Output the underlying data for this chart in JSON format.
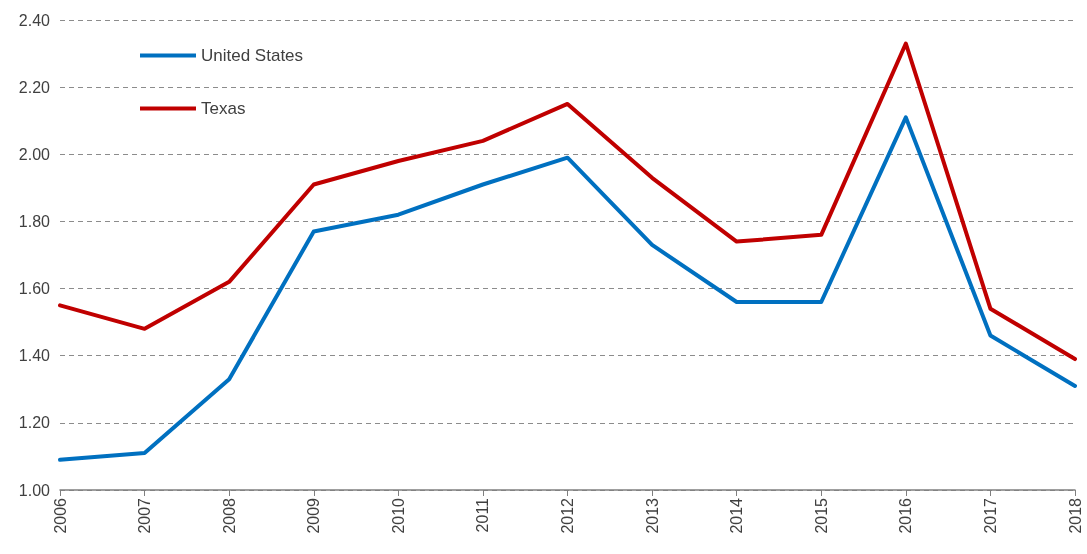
{
  "chart_data": {
    "type": "line",
    "categories": [
      "2006",
      "2007",
      "2008",
      "2009",
      "2010",
      "2011",
      "2012",
      "2013",
      "2014",
      "2015",
      "2016",
      "2017",
      "2018"
    ],
    "series": [
      {
        "name": "United States",
        "color": "#0070c0",
        "values": [
          1.09,
          1.11,
          1.33,
          1.77,
          1.82,
          1.91,
          1.99,
          1.73,
          1.56,
          1.56,
          2.11,
          1.46,
          1.31
        ]
      },
      {
        "name": "Texas",
        "color": "#c00000",
        "values": [
          1.55,
          1.48,
          1.62,
          1.91,
          1.98,
          2.04,
          2.15,
          1.93,
          1.74,
          1.76,
          2.33,
          1.54,
          1.39
        ]
      }
    ],
    "ylim": [
      1.0,
      2.4
    ],
    "yticks": [
      {
        "value": 1.0,
        "label": "1.00"
      },
      {
        "value": 1.2,
        "label": "1.20"
      },
      {
        "value": 1.4,
        "label": "1.40"
      },
      {
        "value": 1.6,
        "label": "1.60"
      },
      {
        "value": 1.8,
        "label": "1.80"
      },
      {
        "value": 2.0,
        "label": "2.00"
      },
      {
        "value": 2.2,
        "label": "2.20"
      },
      {
        "value": 2.4,
        "label": "2.40"
      }
    ],
    "grid": "y",
    "legend": "top left",
    "marker": "none",
    "line_style": "solid"
  }
}
